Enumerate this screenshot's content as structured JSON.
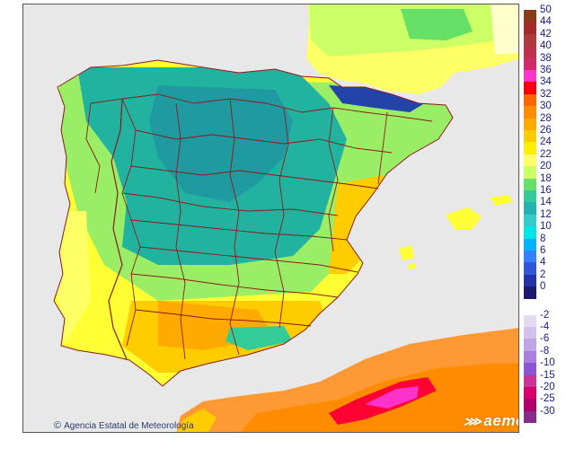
{
  "map": {
    "credit": "Agencia Estatal de Meteorología",
    "credit_icon": "copyright-icon",
    "logo": "aemet",
    "logo_icon": "aemet-logo-mark-icon",
    "region": "Iberian Peninsula and Balearic Islands",
    "colors": {
      "sea": "#e8e8e8",
      "france": "#ffffcc",
      "borders": "#8b1a1a",
      "cool": "#2ab3a8",
      "mild": "#7fe070",
      "warm": "#ffff33",
      "hot": "#ffcc00",
      "africa": "#ff9933",
      "africa_hot": "#ff0033"
    }
  },
  "legend": {
    "positive": [
      {
        "label": "50",
        "color": "#8b3a1a"
      },
      {
        "label": "44",
        "color": "#a52a2a"
      },
      {
        "label": "42",
        "color": "#b03a3a"
      },
      {
        "label": "40",
        "color": "#c0304a"
      },
      {
        "label": "38",
        "color": "#d02a6a"
      },
      {
        "label": "36",
        "color": "#ff33cc"
      },
      {
        "label": "34",
        "color": "#ff0000"
      },
      {
        "label": "32",
        "color": "#ff6600"
      },
      {
        "label": "30",
        "color": "#ff8c00"
      },
      {
        "label": "28",
        "color": "#ffaa00"
      },
      {
        "label": "26",
        "color": "#ffcc00"
      },
      {
        "label": "24",
        "color": "#ffee00"
      },
      {
        "label": "22",
        "color": "#ffff66"
      },
      {
        "label": "20",
        "color": "#ccff66"
      },
      {
        "label": "18",
        "color": "#66e066"
      },
      {
        "label": "16",
        "color": "#33cc99"
      },
      {
        "label": "14",
        "color": "#22b3b3"
      },
      {
        "label": "12",
        "color": "#33cccc"
      },
      {
        "label": "10",
        "color": "#00e6e6"
      },
      {
        "label": "8",
        "color": "#00b3ff"
      },
      {
        "label": "6",
        "color": "#3380ff"
      },
      {
        "label": "4",
        "color": "#3355dd"
      },
      {
        "label": "2",
        "color": "#2233aa"
      },
      {
        "label": "0",
        "color": "#1a1a70"
      }
    ],
    "negative": [
      {
        "label": "-2",
        "color": "#e6d9f2"
      },
      {
        "label": "-4",
        "color": "#d4c2ee"
      },
      {
        "label": "-6",
        "color": "#c0a6e6"
      },
      {
        "label": "-8",
        "color": "#a980e0"
      },
      {
        "label": "-10",
        "color": "#8c55d6"
      },
      {
        "label": "-15",
        "color": "#cc3399"
      },
      {
        "label": "-20",
        "color": "#d9006c"
      },
      {
        "label": "-25",
        "color": "#b0006a"
      },
      {
        "label": "-30",
        "color": "#8a2a8a"
      }
    ]
  }
}
